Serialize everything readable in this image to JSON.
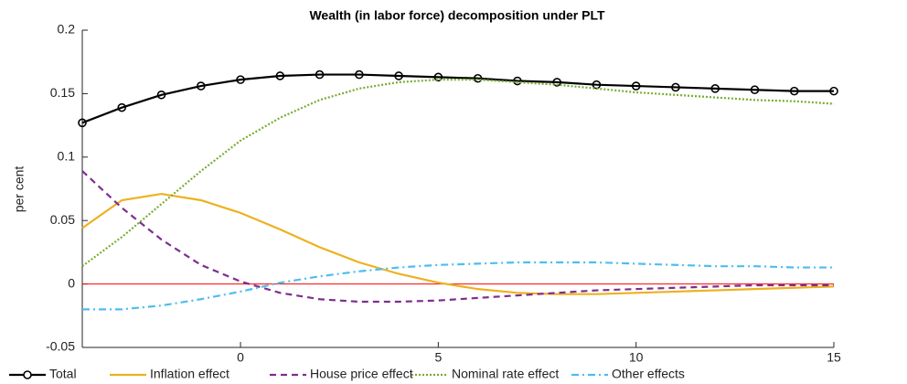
{
  "chart_data": {
    "type": "line",
    "title": "Wealth (in labor force) decomposition under PLT",
    "y_label": "per cent",
    "x": [
      -4,
      -3,
      -2,
      -1,
      0,
      1,
      2,
      3,
      4,
      5,
      6,
      7,
      8,
      9,
      10,
      11,
      12,
      13,
      14,
      15
    ],
    "xlim": [
      -4,
      15
    ],
    "xticks": [
      0,
      5,
      10,
      15
    ],
    "ylim": [
      -0.05,
      0.2
    ],
    "yticks": [
      -0.05,
      0,
      0.05,
      0.1,
      0.15,
      0.2
    ],
    "grid": false,
    "legend": "bottom",
    "hline": {
      "value": 0,
      "color": "#ff0000"
    },
    "series": [
      {
        "name": "Total",
        "color": "#000000",
        "linestyle": "-",
        "marker": "o",
        "values": [
          0.127,
          0.139,
          0.149,
          0.156,
          0.161,
          0.164,
          0.165,
          0.165,
          0.164,
          0.163,
          0.162,
          0.16,
          0.159,
          0.157,
          0.156,
          0.155,
          0.154,
          0.153,
          0.152,
          0.152
        ]
      },
      {
        "name": "Inflation effect",
        "color": "#edb120",
        "linestyle": "-",
        "values": [
          0.044,
          0.066,
          0.071,
          0.066,
          0.056,
          0.043,
          0.029,
          0.017,
          0.008,
          0.001,
          -0.004,
          -0.007,
          -0.008,
          -0.008,
          -0.007,
          -0.006,
          -0.005,
          -0.004,
          -0.003,
          -0.002
        ]
      },
      {
        "name": "House price effect",
        "color": "#7e2f8e",
        "linestyle": "--",
        "values": [
          0.089,
          0.06,
          0.035,
          0.015,
          0.002,
          -0.007,
          -0.012,
          -0.014,
          -0.014,
          -0.013,
          -0.011,
          -0.009,
          -0.007,
          -0.005,
          -0.004,
          -0.003,
          -0.002,
          -0.001,
          -0.001,
          -0.001
        ]
      },
      {
        "name": "Nominal rate effect",
        "color": "#77ac30",
        "linestyle": ":",
        "values": [
          0.014,
          0.037,
          0.063,
          0.089,
          0.113,
          0.131,
          0.145,
          0.154,
          0.159,
          0.161,
          0.161,
          0.159,
          0.157,
          0.154,
          0.151,
          0.149,
          0.147,
          0.145,
          0.144,
          0.142
        ]
      },
      {
        "name": "Other effects",
        "color": "#4dbeee",
        "linestyle": "-.",
        "values": [
          -0.02,
          -0.02,
          -0.017,
          -0.012,
          -0.006,
          0.001,
          0.006,
          0.01,
          0.013,
          0.015,
          0.016,
          0.017,
          0.017,
          0.017,
          0.016,
          0.015,
          0.014,
          0.014,
          0.013,
          0.013
        ]
      }
    ]
  }
}
